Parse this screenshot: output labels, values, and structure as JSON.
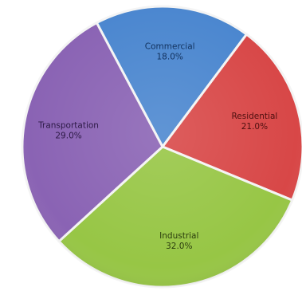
{
  "chart_data": {
    "type": "pie",
    "title": "",
    "start_angle_deg": -118,
    "slices": [
      {
        "name": "Commercial",
        "value": 18.0,
        "value_label": "18.0%",
        "color": "#4a86cf",
        "label_color": "#12325e"
      },
      {
        "name": "Residential",
        "value": 21.0,
        "value_label": "21.0%",
        "color": "#d84747",
        "label_color": "#4d0f0f"
      },
      {
        "name": "Industrial",
        "value": 32.0,
        "value_label": "32.0%",
        "color": "#97c645",
        "label_color": "#2b3d0e"
      },
      {
        "name": "Transportation",
        "value": 29.0,
        "value_label": "29.0%",
        "color": "#8a63b4",
        "label_color": "#2d1a46"
      }
    ]
  }
}
